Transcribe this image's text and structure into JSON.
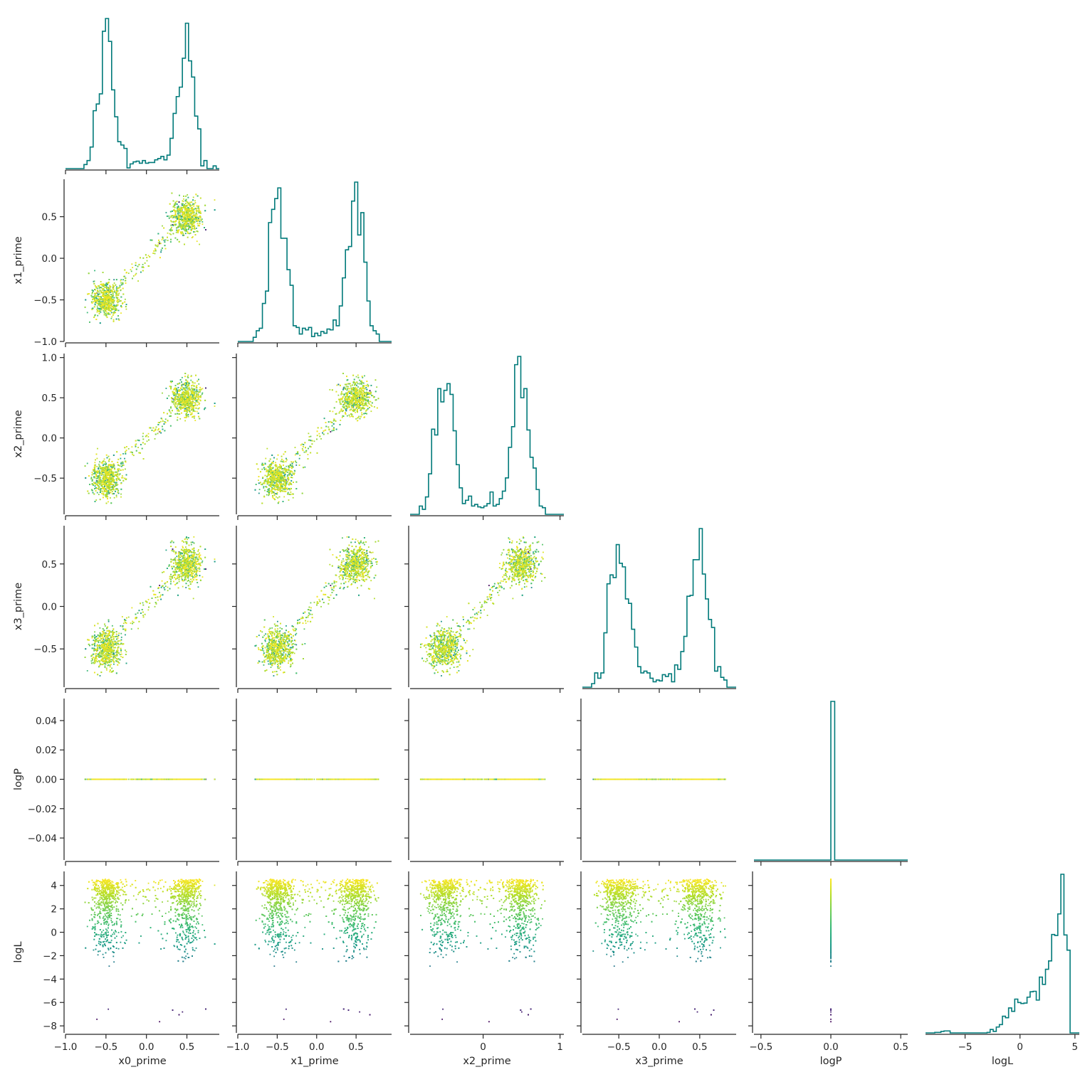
{
  "chart_data": {
    "type": "corner-plot",
    "description_of_structure": "lower-triangular pair plot: diagonal step histograms, off-diagonal scatter colored by logL (viridis)",
    "variables": [
      "x0_prime",
      "x1_prime",
      "x2_prime",
      "x3_prime",
      "logP",
      "logL"
    ],
    "colors": {
      "histogram": "#007a7a",
      "axis": "#262626",
      "colormap": "viridis"
    },
    "axes": {
      "x0_prime": {
        "range": [
          -1.0,
          0.9
        ],
        "ticks": [
          -1.0,
          -0.5,
          0.0,
          0.5
        ],
        "tick_labels": [
          "−1.0",
          "−0.5",
          "0.0",
          "0.5"
        ]
      },
      "x1_prime": {
        "range": [
          -1.0,
          0.95
        ],
        "ticks": [
          -1.0,
          -0.5,
          0.0,
          0.5
        ],
        "tick_labels": [
          "−1.0",
          "−0.5",
          "0.0",
          "0.5"
        ]
      },
      "x2_prime": {
        "range": [
          -0.95,
          1.05
        ],
        "ticks": [
          0,
          1
        ],
        "tick_labels": [
          "0",
          "1"
        ],
        "y_ticks": [
          -0.5,
          0.0,
          0.5,
          1.0
        ],
        "y_tick_labels": [
          "−0.5",
          "0.0",
          "0.5",
          "1.0"
        ]
      },
      "x3_prime": {
        "range": [
          -0.95,
          0.95
        ],
        "ticks": [
          -0.5,
          0.0,
          0.5
        ],
        "tick_labels": [
          "−0.5",
          "0.0",
          "0.5"
        ]
      },
      "logP": {
        "range": [
          -0.055,
          0.055
        ],
        "ticks": [
          -0.04,
          -0.02,
          0.0,
          0.02,
          0.04
        ],
        "tick_labels": [
          "−0.04",
          "−0.02",
          "0.00",
          "0.02",
          "0.04"
        ],
        "x_range": [
          -0.55,
          0.55
        ],
        "x_ticks": [
          -0.5,
          0.0,
          0.5
        ],
        "x_tick_labels": [
          "−0.5",
          "0.0",
          "0.5"
        ]
      },
      "logL": {
        "range": [
          -8.6,
          5.2
        ],
        "ticks": [
          -8,
          -6,
          -4,
          -2,
          0,
          2,
          4
        ],
        "tick_labels": [
          "−8",
          "−6",
          "−4",
          "−2",
          "0",
          "2",
          "4"
        ],
        "x_ticks": [
          -5,
          0,
          5
        ],
        "x_tick_labels": [
          "−5",
          "0",
          "5"
        ]
      }
    },
    "x_axis_labels": [
      "x0_prime",
      "x1_prime",
      "x2_prime",
      "x3_prime",
      "logP",
      "logL"
    ],
    "y_axis_labels": [
      "x1_prime",
      "x2_prime",
      "x3_prime",
      "logP",
      "logL"
    ],
    "distribution_summary": {
      "x_primes": {
        "modes": [
          -0.5,
          0.5
        ],
        "mode_spread": 0.1,
        "bridge_fraction": 0.09
      },
      "logP": {
        "value": 0.0
      },
      "logL": {
        "max": 4.55,
        "peak": 3.6,
        "min": -7.9
      }
    }
  }
}
